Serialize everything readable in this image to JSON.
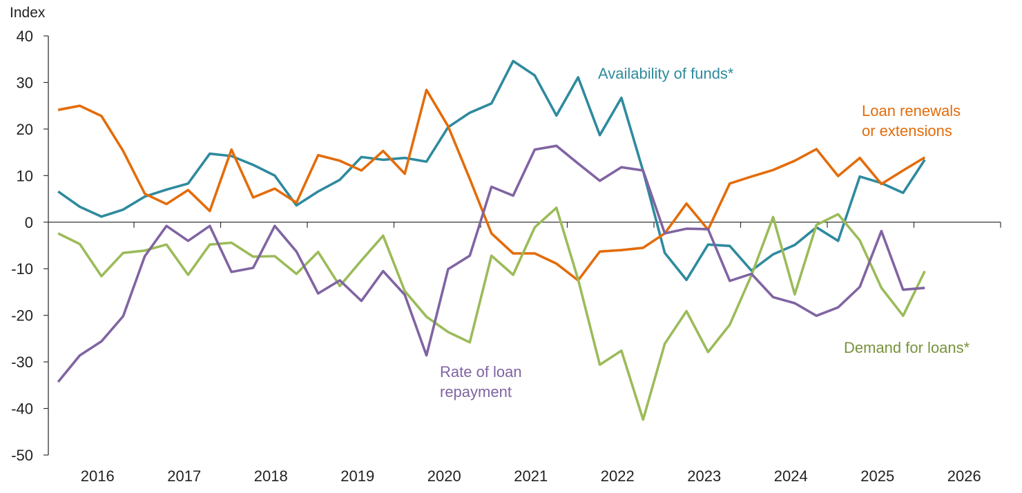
{
  "chart_data": {
    "type": "line",
    "ylabel": "Index",
    "ylim": [
      -50,
      40
    ],
    "yticks": [
      40,
      30,
      20,
      10,
      0,
      -10,
      -20,
      -30,
      -40,
      -50
    ],
    "xtick_labels": [
      "2016",
      "2017",
      "2018",
      "2019",
      "2020",
      "2021",
      "2022",
      "2023",
      "2024",
      "2025",
      "2026"
    ],
    "grid": false,
    "x": [
      "2016Q1",
      "2016Q2",
      "2016Q3",
      "2016Q4",
      "2017Q1",
      "2017Q2",
      "2017Q3",
      "2017Q4",
      "2018Q1",
      "2018Q2",
      "2018Q3",
      "2018Q4",
      "2019Q1",
      "2019Q2",
      "2019Q3",
      "2019Q4",
      "2020Q1",
      "2020Q2",
      "2020Q3",
      "2020Q4",
      "2021Q1",
      "2021Q2",
      "2021Q3",
      "2021Q4",
      "2022Q1",
      "2022Q2",
      "2022Q3",
      "2022Q4",
      "2023Q1",
      "2023Q2",
      "2023Q3",
      "2023Q4",
      "2024Q1",
      "2024Q2",
      "2024Q3",
      "2024Q4",
      "2025Q1",
      "2025Q2",
      "2025Q3",
      "2025Q4",
      "2026Q1"
    ],
    "series": [
      {
        "name": "Availability of funds*",
        "color": "#2e8a9e",
        "label_lines": [
          "Availability of funds*"
        ],
        "values": [
          6.6,
          3.3,
          1.2,
          2.7,
          5.5,
          7.0,
          8.3,
          14.7,
          14.2,
          12.3,
          10.0,
          3.6,
          6.6,
          9.1,
          14.0,
          13.4,
          13.8,
          13.0,
          20.4,
          23.5,
          25.5,
          34.6,
          31.5,
          22.9,
          31.1,
          18.7,
          26.7,
          11.0,
          -6.6,
          -12.4,
          -4.8,
          -5.1,
          -10.4,
          -6.9,
          -4.9,
          -1.1,
          -4.0,
          9.8,
          8.4,
          6.3,
          13.4
        ]
      },
      {
        "name": "Loan renewals or extensions",
        "color": "#e36c0a",
        "label_lines": [
          "Loan renewals",
          "or extensions"
        ],
        "values": [
          24.1,
          25.0,
          22.8,
          15.3,
          6.1,
          3.9,
          6.9,
          2.4,
          15.6,
          5.3,
          7.2,
          4.2,
          14.4,
          13.2,
          11.1,
          15.3,
          10.4,
          28.4,
          20.6,
          9.3,
          -2.4,
          -6.7,
          -6.7,
          -8.9,
          -12.5,
          -6.3,
          -6.0,
          -5.5,
          -2.4,
          4.0,
          -1.6,
          8.3,
          9.8,
          11.2,
          13.2,
          15.7,
          9.9,
          13.8,
          8.2,
          11.1,
          13.9
        ]
      },
      {
        "name": "Demand for loans*",
        "color": "#9bbb59",
        "label_color": "#77933c",
        "label_lines": [
          "Demand for loans*"
        ],
        "values": [
          -2.4,
          -4.7,
          -11.6,
          -6.6,
          -6.1,
          -4.8,
          -11.3,
          -4.8,
          -4.4,
          -7.4,
          -7.3,
          -11.1,
          -6.4,
          -13.7,
          -8.2,
          -2.9,
          -14.8,
          -20.3,
          -23.6,
          -25.8,
          -7.2,
          -11.3,
          -1.1,
          3.1,
          -12.3,
          -30.6,
          -27.6,
          -42.4,
          -26.1,
          -19.1,
          -27.9,
          -22.0,
          -11.4,
          1.1,
          -15.5,
          -0.6,
          1.7,
          -3.9,
          -14.1,
          -20.1,
          -10.5
        ]
      },
      {
        "name": "Rate of loan repayment",
        "color": "#8064a2",
        "label_lines": [
          "Rate of loan",
          "repayment"
        ],
        "values": [
          -34.3,
          -28.6,
          -25.6,
          -20.2,
          -7.3,
          -0.8,
          -4.0,
          -0.8,
          -10.7,
          -9.8,
          -0.8,
          -6.3,
          -15.3,
          -12.5,
          -16.9,
          -10.5,
          -15.6,
          -28.6,
          -10.1,
          -7.2,
          7.6,
          5.7,
          15.6,
          16.4,
          12.6,
          8.9,
          11.8,
          11.1,
          -2.4,
          -1.4,
          -1.5,
          -12.6,
          -11.1,
          -16.1,
          -17.4,
          -20.1,
          -18.3,
          -13.9,
          -1.9,
          -14.5,
          -14.1
        ]
      }
    ]
  }
}
